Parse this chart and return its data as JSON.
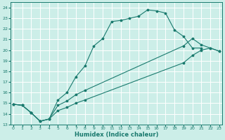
{
  "xlabel": "Humidex (Indice chaleur)",
  "bg_color": "#cceee8",
  "grid_color": "#ffffff",
  "line_color": "#1a7a6e",
  "series": [
    {
      "x": [
        0,
        1,
        2,
        3,
        4,
        5,
        6,
        7,
        8,
        9,
        10,
        11,
        12,
        13,
        14,
        15,
        16,
        17,
        18,
        19,
        20,
        21
      ],
      "y": [
        14.9,
        14.8,
        14.1,
        13.3,
        13.5,
        15.3,
        16.0,
        17.5,
        18.5,
        20.4,
        21.1,
        22.7,
        22.8,
        23.0,
        23.2,
        23.8,
        23.7,
        23.5,
        21.9,
        21.3,
        20.2,
        20.2
      ]
    },
    {
      "x": [
        0,
        1,
        2,
        3,
        4,
        5,
        6,
        7,
        8,
        19,
        20,
        21,
        22,
        23
      ],
      "y": [
        14.9,
        14.8,
        14.1,
        13.3,
        13.5,
        14.8,
        15.2,
        15.8,
        16.2,
        20.4,
        21.1,
        20.5,
        20.2,
        19.9
      ]
    },
    {
      "x": [
        0,
        1,
        2,
        3,
        4,
        5,
        6,
        7,
        8,
        19,
        20,
        21,
        22,
        23
      ],
      "y": [
        14.9,
        14.8,
        14.1,
        13.3,
        13.5,
        14.3,
        14.6,
        15.0,
        15.3,
        18.8,
        19.5,
        20.0,
        20.2,
        19.9
      ]
    }
  ],
  "xlim": [
    -0.3,
    23.3
  ],
  "ylim": [
    13.0,
    24.5
  ],
  "yticks": [
    13,
    14,
    15,
    16,
    17,
    18,
    19,
    20,
    21,
    22,
    23,
    24
  ],
  "xticks": [
    0,
    1,
    2,
    3,
    4,
    5,
    6,
    7,
    8,
    9,
    10,
    11,
    12,
    13,
    14,
    15,
    16,
    17,
    18,
    19,
    20,
    21,
    22,
    23
  ],
  "tick_color": "#1a7a6e",
  "xlabel_color": "#1a7a6e"
}
